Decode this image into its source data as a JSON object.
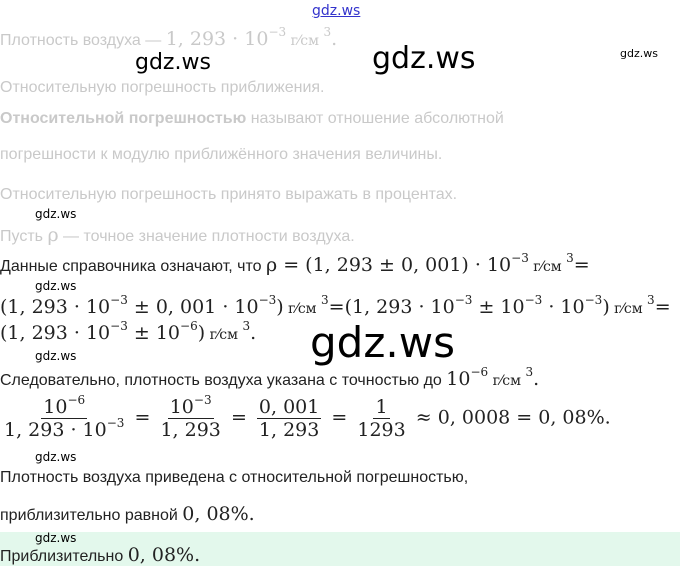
{
  "watermarks": {
    "top": "gdz.ws",
    "text": "gdz.ws"
  },
  "lines": {
    "l1_text": "Плотность воздуха — ",
    "l1_math": "1, 293 · 10",
    "l1_exp": "−3",
    "l1_unit": " г⁄см ",
    "l1_unit_exp": "3",
    "l1_end": ".",
    "l2": "Относительную погрешность приближения.",
    "l3_bold": "Относительной погрешностью",
    "l3_rest": " называют отношение абсолютной",
    "l4": "погрешности к модулю приближённого значения величины.",
    "l5": "Относительную погрешность принято выражать в процентах.",
    "l6_a": "Пусть ",
    "l6_rho": "ρ",
    "l6_b": " — точное значение плотности воздуха.",
    "l7_text": "Данные справочника означают, что ",
    "l7_math": "ρ = (1, 293 ± 0, 001) · 10",
    "l7_exp": "−3",
    "l7_unit": " г⁄см ",
    "l7_unit_exp": "3",
    "l7_eq": "=",
    "l8_a": "(1, 293 · 10",
    "l8_e1": "−3",
    "l8_b": " ± 0, 001 · 10",
    "l8_e2": "−3",
    "l8_c": ")",
    "l8_unit": " г⁄см ",
    "l8_ue": "3",
    "l8_d": "=(1, 293 · 10",
    "l8_e3": "−3",
    "l8_f": " ± 10",
    "l8_e4": "−3",
    "l8_g": " · 10",
    "l8_e5": "−3",
    "l8_h": ")",
    "l8_unit2": " г⁄см ",
    "l8_ue2": "3",
    "l8_eq": "=",
    "l9_a": "(1, 293 · 10",
    "l9_e1": "−3",
    "l9_b": " ± 10",
    "l9_e2": "−6",
    "l9_c": ")",
    "l9_unit": " г⁄см ",
    "l9_ue": "3",
    "l9_end": ".",
    "l10_text": "Следовательно, плотность воздуха указана с точностью до ",
    "l10_math": "10",
    "l10_exp": "−6",
    "l10_unit": " г⁄см ",
    "l10_ue": "3",
    "l10_end": ".",
    "l12": "Плотность воздуха приведена с относительной погрешностью,",
    "l13_text": "приблизительно равной ",
    "l13_math": "0, 08%."
  },
  "fraction": {
    "f1_num": "10",
    "f1_num_exp": "−6",
    "f1_den": "1, 293 · 10",
    "f1_den_exp": "−3",
    "eq": "=",
    "f2_num": "10",
    "f2_num_exp": "−3",
    "f2_den": "1, 293",
    "f3_num": "0, 001",
    "f3_den": "1, 293",
    "f4_num": "1",
    "f4_den": "1293",
    "tail": "≈ 0, 0008 = 0, 08%."
  },
  "answer": {
    "text": "Приблизительно ",
    "math": "0, 08%.",
    "bg": "#e3f8ec"
  }
}
